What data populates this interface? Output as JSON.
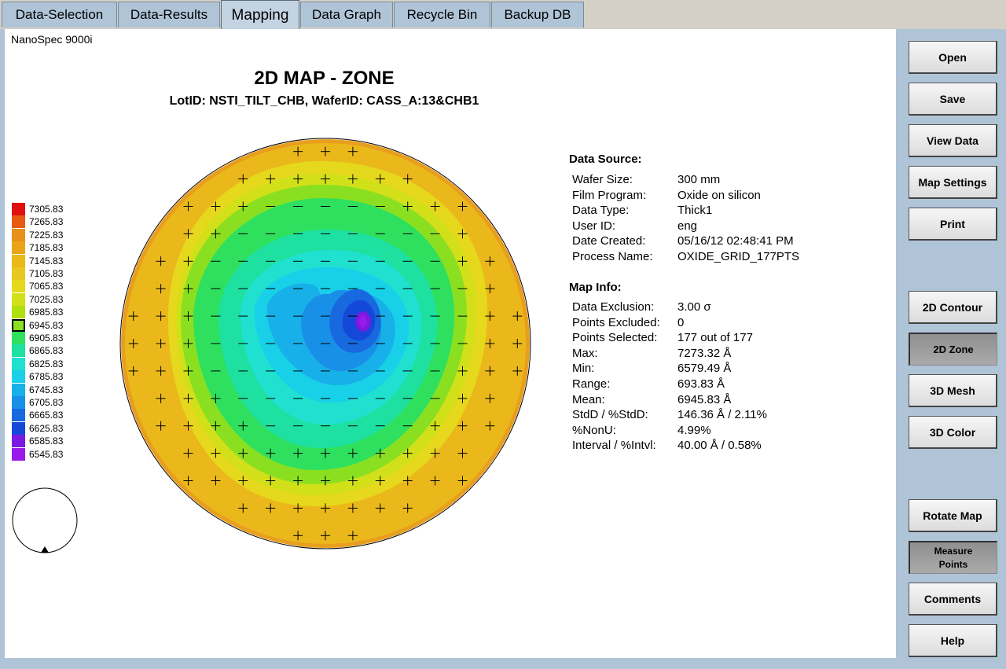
{
  "tabs": [
    {
      "label": "Data-Selection",
      "active": false
    },
    {
      "label": "Data-Results",
      "active": false
    },
    {
      "label": "Mapping",
      "active": true
    },
    {
      "label": "Data Graph",
      "active": false
    },
    {
      "label": "Recycle Bin",
      "active": false
    },
    {
      "label": "Backup DB",
      "active": false
    }
  ],
  "brand": "NanoSpec 9000i",
  "map": {
    "title": "2D MAP - ZONE",
    "subtitle": "LotID: NSTI_TILT_CHB, WaferID: CASS_A:13&CHB1"
  },
  "legend": [
    {
      "value": "7305.83",
      "color": "#e01010"
    },
    {
      "value": "7265.83",
      "color": "#e85a10"
    },
    {
      "value": "7225.83",
      "color": "#e8901a"
    },
    {
      "value": "7185.83",
      "color": "#eaa418"
    },
    {
      "value": "7145.83",
      "color": "#eab81a"
    },
    {
      "value": "7105.83",
      "color": "#e8c820"
    },
    {
      "value": "7065.83",
      "color": "#e6d81c"
    },
    {
      "value": "7025.83",
      "color": "#d2e01a"
    },
    {
      "value": "6985.83",
      "color": "#b0e010"
    },
    {
      "value": "6945.83",
      "color": "#8ae020",
      "selected": true
    },
    {
      "value": "6905.83",
      "color": "#2ee05e"
    },
    {
      "value": "6865.83",
      "color": "#1ee0a0"
    },
    {
      "value": "6825.83",
      "color": "#20e0d0"
    },
    {
      "value": "6785.83",
      "color": "#18d0e8"
    },
    {
      "value": "6745.83",
      "color": "#18b0e8"
    },
    {
      "value": "6705.83",
      "color": "#1890e8"
    },
    {
      "value": "6665.83",
      "color": "#1868e0"
    },
    {
      "value": "6625.83",
      "color": "#1448d8"
    },
    {
      "value": "6585.83",
      "color": "#7a1ae0"
    },
    {
      "value": "6545.83",
      "color": "#9a1aea"
    }
  ],
  "data_source": {
    "heading": "Data Source:",
    "rows": [
      {
        "label": "Wafer Size:",
        "value": "300 mm"
      },
      {
        "label": "Film Program:",
        "value": "Oxide on silicon"
      },
      {
        "label": "Data Type:",
        "value": "Thick1"
      },
      {
        "label": "User ID:",
        "value": "eng"
      },
      {
        "label": "Date Created:",
        "value": "05/16/12 02:48:41 PM"
      },
      {
        "label": "Process Name:",
        "value": "OXIDE_GRID_177PTS"
      }
    ]
  },
  "map_info": {
    "heading": "Map Info:",
    "rows": [
      {
        "label": "Data Exclusion:",
        "value": "3.00 σ"
      },
      {
        "label": "Points Excluded:",
        "value": "0"
      },
      {
        "label": "Points Selected:",
        "value": "177 out of 177"
      },
      {
        "label": "Max:",
        "value": "7273.32 Å"
      },
      {
        "label": "Min:",
        "value": "6579.49 Å"
      },
      {
        "label": "Range:",
        "value": "693.83 Å"
      },
      {
        "label": "Mean:",
        "value": "6945.83 Å"
      },
      {
        "label": "StdD / %StdD:",
        "value": "146.36 Å / 2.11%"
      },
      {
        "label": "%NonU:",
        "value": "4.99%"
      },
      {
        "label": "Interval / %Intvl:",
        "value": "40.00 Å / 0.58%"
      }
    ]
  },
  "buttons": {
    "open": "Open",
    "save": "Save",
    "view_data": "View Data",
    "map_settings": "Map Settings",
    "print": "Print",
    "contour_2d": "2D Contour",
    "zone_2d": "2D Zone",
    "mesh_3d": "3D Mesh",
    "color_3d": "3D Color",
    "rotate_map": "Rotate Map",
    "measure_points_line1": "Measure",
    "measure_points_line2": "Points",
    "comments": "Comments",
    "help": "Help"
  }
}
